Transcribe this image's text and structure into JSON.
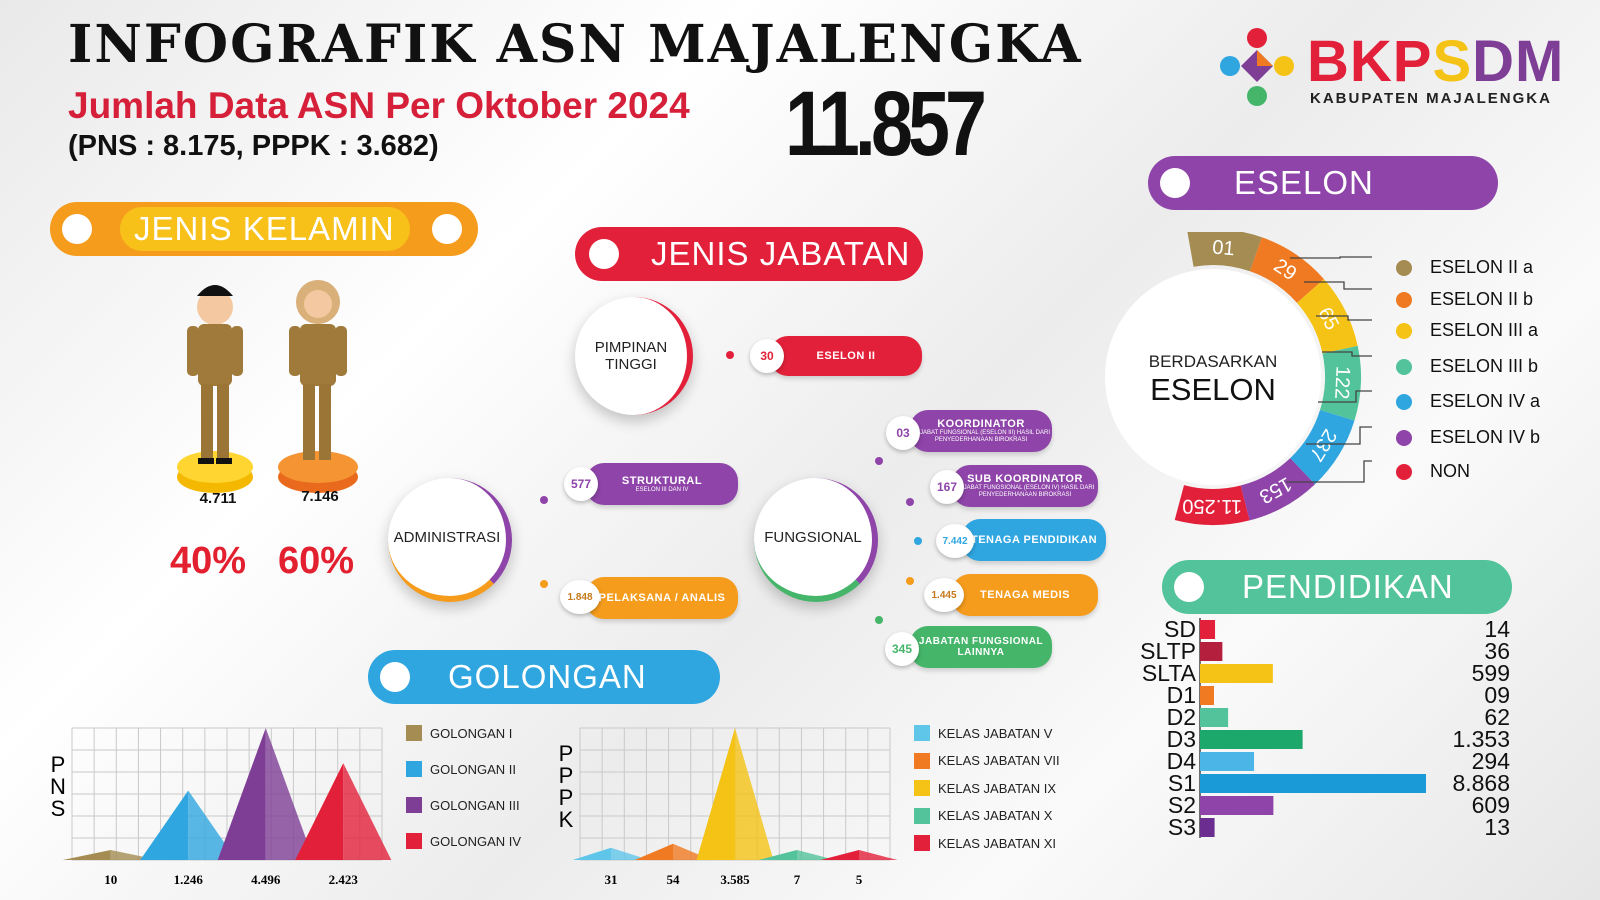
{
  "header": {
    "title": "INFOGRAFIK ASN MAJALENGKA",
    "subtitle": "Jumlah Data ASN Per Oktober 2024",
    "breakdown": "(PNS : 8.175, PPPK : 3.682)",
    "total": "11.857",
    "logo": {
      "b1": "BKP",
      "b2": "S",
      "b3": "DM",
      "sub": "KABUPATEN MAJALENGKA"
    }
  },
  "colors": {
    "red": "#e3203a",
    "orange": "#f07a22",
    "yellow": "#f5c316",
    "green": "#45b56a",
    "blue": "#2fa6e0",
    "purple": "#7e3e96",
    "olive": "#a48c52",
    "teal": "#52c39a"
  },
  "sections": {
    "gender": "JENIS KELAMIN",
    "jabatan": "JENIS JABATAN",
    "golongan": "GOLONGAN",
    "eselon": "ESELON",
    "pendidikan": "PENDIDIKAN"
  },
  "gender": {
    "male_value": "4.711",
    "female_value": "7.146",
    "male_pct": "40%",
    "female_pct": "60%"
  },
  "jabatan": {
    "pimpinan": {
      "label": "PIMPINAN TINGGI",
      "count": "30",
      "chip": "ESELON II"
    },
    "administrasi": {
      "label": "ADMINISTRASI",
      "struktural": {
        "count": "577",
        "title": "STRUKTURAL",
        "sub": "ESELON III DAN IV"
      },
      "pelaksana": {
        "count": "1.848",
        "title": "PELAKSANA / ANALIS"
      }
    },
    "fungsional": {
      "label": "FUNGSIONAL",
      "items": [
        {
          "count": "03",
          "title": "KOORDINATOR",
          "sub": "PEJABAT FUNGSIONAL (ESELON III) HASIL DARI PENYEDERHANAAN BIROKRASI"
        },
        {
          "count": "167",
          "title": "SUB KOORDINATOR",
          "sub": "PEJABAT FUNGSIONAL (ESELON IV) HASIL DARI PENYEDERHANAAN BIROKRASI"
        },
        {
          "count": "7.442",
          "title": "TENAGA PENDIDIKAN",
          "sub": ""
        },
        {
          "count": "1.445",
          "title": "TENAGA MEDIS",
          "sub": ""
        },
        {
          "count": "345",
          "title": "JABATAN FUNGSIONAL LAINNYA",
          "sub": ""
        }
      ]
    }
  },
  "eselon": {
    "center_small": "BERDASARKAN",
    "center_big": "ESELON",
    "legend": [
      "ESELON II a",
      "ESELON II b",
      "ESELON III a",
      "ESELON III b",
      "ESELON IV a",
      "ESELON IV b",
      "NON"
    ]
  },
  "golongan_side": {
    "pns": "PNS",
    "pppk": "PPPK"
  },
  "chart_data": [
    {
      "type": "area",
      "name": "PNS Golongan",
      "categories": [
        "GOLONGAN I",
        "GOLONGAN II",
        "GOLONGAN III",
        "GOLONGAN IV"
      ],
      "values": [
        10,
        1246,
        4496,
        2423
      ],
      "labels": [
        "10",
        "1.246",
        "4.496",
        "2.423"
      ],
      "colors": [
        "#a48c52",
        "#2fa6e0",
        "#7e3e96",
        "#e3203a"
      ],
      "ylabel": "PNS"
    },
    {
      "type": "area",
      "name": "PPPK Kelas Jabatan",
      "categories": [
        "KELAS JABATAN V",
        "KELAS JABATAN VII",
        "KELAS JABATAN IX",
        "KELAS JABATAN X",
        "KELAS JABATAN XI"
      ],
      "values": [
        31,
        54,
        3585,
        7,
        5
      ],
      "labels": [
        "31",
        "54",
        "3.585",
        "7",
        "5"
      ],
      "colors": [
        "#5fc6ea",
        "#f07a22",
        "#f5c316",
        "#52c39a",
        "#e3203a"
      ],
      "ylabel": "PPPK"
    },
    {
      "type": "pie",
      "name": "Eselon",
      "categories": [
        "ESELON II a",
        "ESELON II b",
        "ESELON III a",
        "ESELON III b",
        "ESELON IV a",
        "ESELON IV b",
        "NON"
      ],
      "values": [
        1,
        29,
        65,
        122,
        237,
        153,
        11250
      ],
      "labels": [
        "01",
        "29",
        "65",
        "122",
        "237",
        "153",
        "11.250"
      ],
      "colors": [
        "#a48c52",
        "#f07a22",
        "#f5c316",
        "#52c39a",
        "#2fa6e0",
        "#8e44a8",
        "#e3203a"
      ]
    },
    {
      "type": "bar",
      "name": "Pendidikan",
      "categories": [
        "SD",
        "SLTP",
        "SLTA",
        "D1",
        "D2",
        "D3",
        "D4",
        "S1",
        "S2",
        "S3"
      ],
      "values": [
        14,
        36,
        599,
        9,
        62,
        1353,
        294,
        8868,
        609,
        13
      ],
      "labels": [
        "14",
        "36",
        "599",
        "09",
        "62",
        "1.353",
        "294",
        "8.868",
        "609",
        "13"
      ],
      "colors": [
        "#e3203a",
        "#b31f3c",
        "#f5c316",
        "#f07a22",
        "#52c39a",
        "#1ca86b",
        "#4bb5e8",
        "#1a9ad6",
        "#8e44a8",
        "#6c2d91"
      ]
    }
  ]
}
